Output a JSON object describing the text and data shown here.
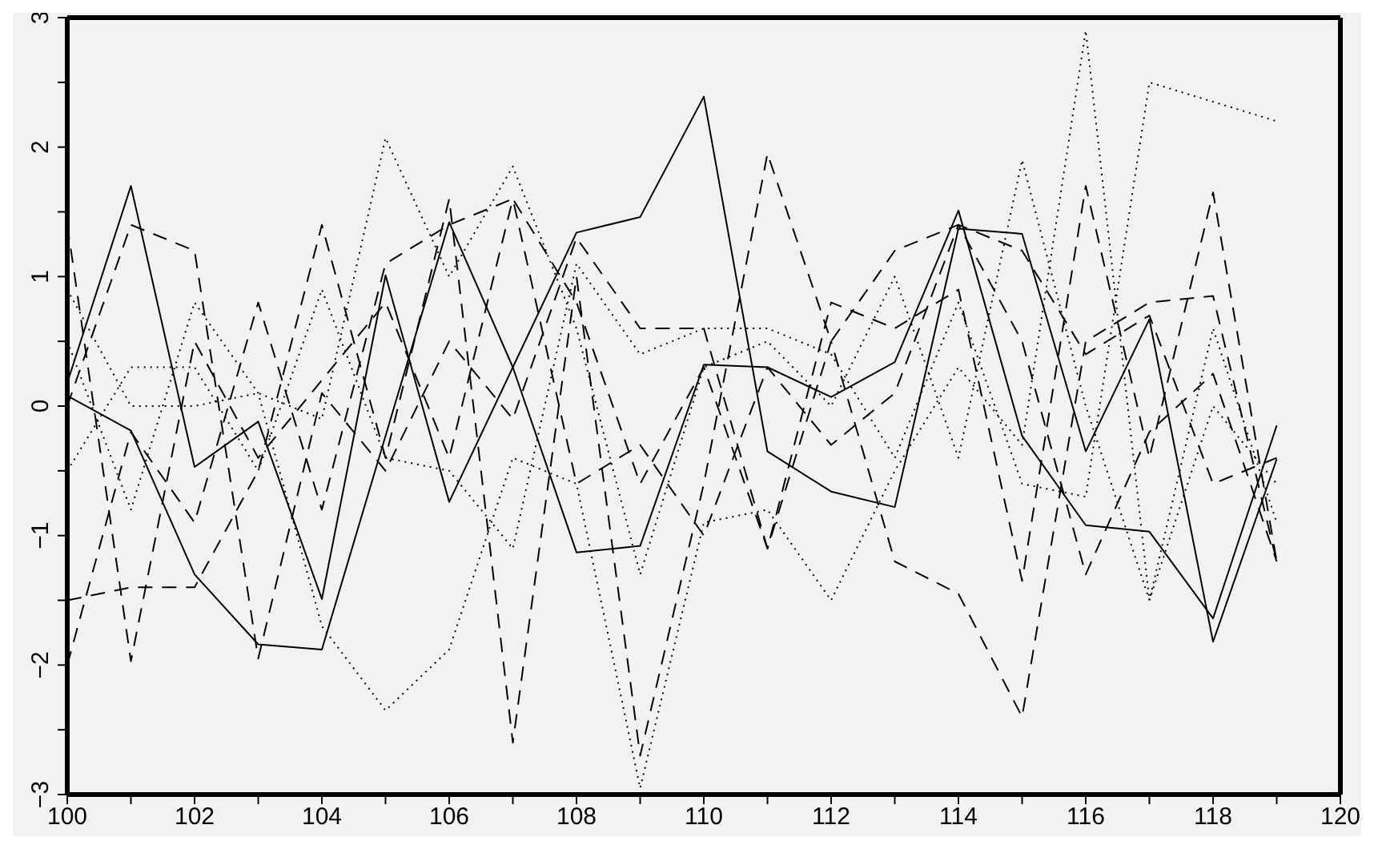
{
  "chart_data": {
    "type": "line",
    "x": [
      100,
      101,
      102,
      103,
      104,
      105,
      106,
      107,
      108,
      109,
      110,
      111,
      112,
      113,
      114,
      115,
      116,
      117,
      118,
      119
    ],
    "xlim": [
      100,
      120
    ],
    "xticks": [
      100,
      {
        "value": 101,
        "label": null
      },
      102,
      {
        "value": 103,
        "label": null
      },
      104,
      {
        "value": 105,
        "label": null
      },
      106,
      {
        "value": 107,
        "label": null
      },
      108,
      {
        "value": 109,
        "label": null
      },
      110,
      {
        "value": 111,
        "label": null
      },
      112,
      {
        "value": 113,
        "label": null
      },
      114,
      {
        "value": 115,
        "label": null
      },
      116,
      {
        "value": 117,
        "label": null
      },
      118,
      {
        "value": 119,
        "label": null
      },
      120
    ],
    "ylim": [
      -3,
      3
    ],
    "yticks": [
      -3,
      {
        "value": -2.5,
        "label": null
      },
      -2,
      {
        "value": -1.5,
        "label": null
      },
      -1,
      {
        "value": -0.5,
        "label": null
      },
      0,
      {
        "value": 0.5,
        "label": null
      },
      1,
      {
        "value": 1.5,
        "label": null
      },
      2,
      {
        "value": 2.5,
        "label": null
      },
      3
    ],
    "grid": false,
    "legend": false,
    "marker": "none",
    "series": [
      {
        "color": "#000000",
        "line_style": "solid",
        "values": [
          0.18,
          1.7,
          -0.47,
          -0.12,
          -1.49,
          1.01,
          -0.74,
          0.3,
          1.34,
          1.46,
          2.39,
          -0.35,
          -0.66,
          -0.78,
          1.37,
          1.33,
          -0.35,
          0.67,
          -1.82,
          -0.41
        ]
      },
      {
        "color": "#000000",
        "line_style": "solid",
        "values": [
          0.08,
          -0.19,
          -1.3,
          -1.84,
          -1.88,
          -0.23,
          1.42,
          0.3,
          -1.13,
          -1.08,
          0.32,
          0.3,
          0.07,
          0.34,
          1.51,
          -0.23,
          -0.92,
          -0.97,
          -1.64,
          -0.15
        ]
      },
      {
        "color": "#000000",
        "line_style": "dotted",
        "values": [
          0.9,
          0.0,
          0.0,
          0.1,
          -0.1,
          2.07,
          1.0,
          1.85,
          0.6,
          -1.3,
          0.3,
          0.5,
          0.0,
          1.0,
          -0.4,
          1.9,
          0.0,
          -1.5,
          0.6,
          -0.9
        ]
      },
      {
        "color": "#000000",
        "line_style": "dotted",
        "values": [
          0.5,
          -0.8,
          0.8,
          0.1,
          -1.7,
          -2.35,
          -1.88,
          -0.4,
          -0.6,
          -2.95,
          -0.9,
          -0.8,
          -1.5,
          -0.5,
          0.3,
          -0.3,
          2.9,
          -1.5,
          0.0,
          -0.6
        ]
      },
      {
        "color": "#000000",
        "line_style": "dotted",
        "values": [
          -0.5,
          0.3,
          0.3,
          -0.5,
          0.9,
          -0.4,
          -0.5,
          -1.1,
          1.1,
          0.4,
          0.6,
          0.6,
          0.4,
          -0.4,
          0.8,
          -0.6,
          -0.7,
          2.5,
          2.35,
          2.2
        ]
      },
      {
        "color": "#000000",
        "line_style": "dashed",
        "values": [
          1.4,
          -1.97,
          0.5,
          -0.4,
          0.2,
          0.8,
          -0.4,
          1.6,
          0.8,
          -0.6,
          0.3,
          -1.1,
          0.5,
          -1.2,
          -1.45,
          -2.4,
          0.5,
          0.8,
          0.85,
          -1.2
        ]
      },
      {
        "color": "#000000",
        "line_style": "dashed",
        "values": [
          0.0,
          1.4,
          1.2,
          -1.95,
          0.1,
          -0.5,
          0.5,
          -0.1,
          1.3,
          0.6,
          0.6,
          -1.1,
          0.8,
          0.6,
          0.9,
          -1.35,
          1.7,
          -0.4,
          1.65,
          -1.2
        ]
      },
      {
        "color": "#000000",
        "line_style": "dashed",
        "values": [
          -1.5,
          -1.4,
          -1.4,
          -0.5,
          1.4,
          -0.4,
          1.6,
          -2.6,
          1.0,
          -2.7,
          -0.6,
          1.95,
          0.5,
          1.2,
          1.4,
          0.5,
          -1.3,
          -0.2,
          0.25,
          -1.2
        ]
      },
      {
        "color": "#000000",
        "line_style": "dashed",
        "values": [
          -2.0,
          -0.2,
          -0.9,
          0.8,
          -0.8,
          1.1,
          1.4,
          1.6,
          -0.6,
          -0.3,
          -1.0,
          0.3,
          -0.3,
          0.1,
          1.4,
          1.2,
          0.4,
          0.7,
          -0.6,
          -0.4
        ]
      }
    ]
  }
}
